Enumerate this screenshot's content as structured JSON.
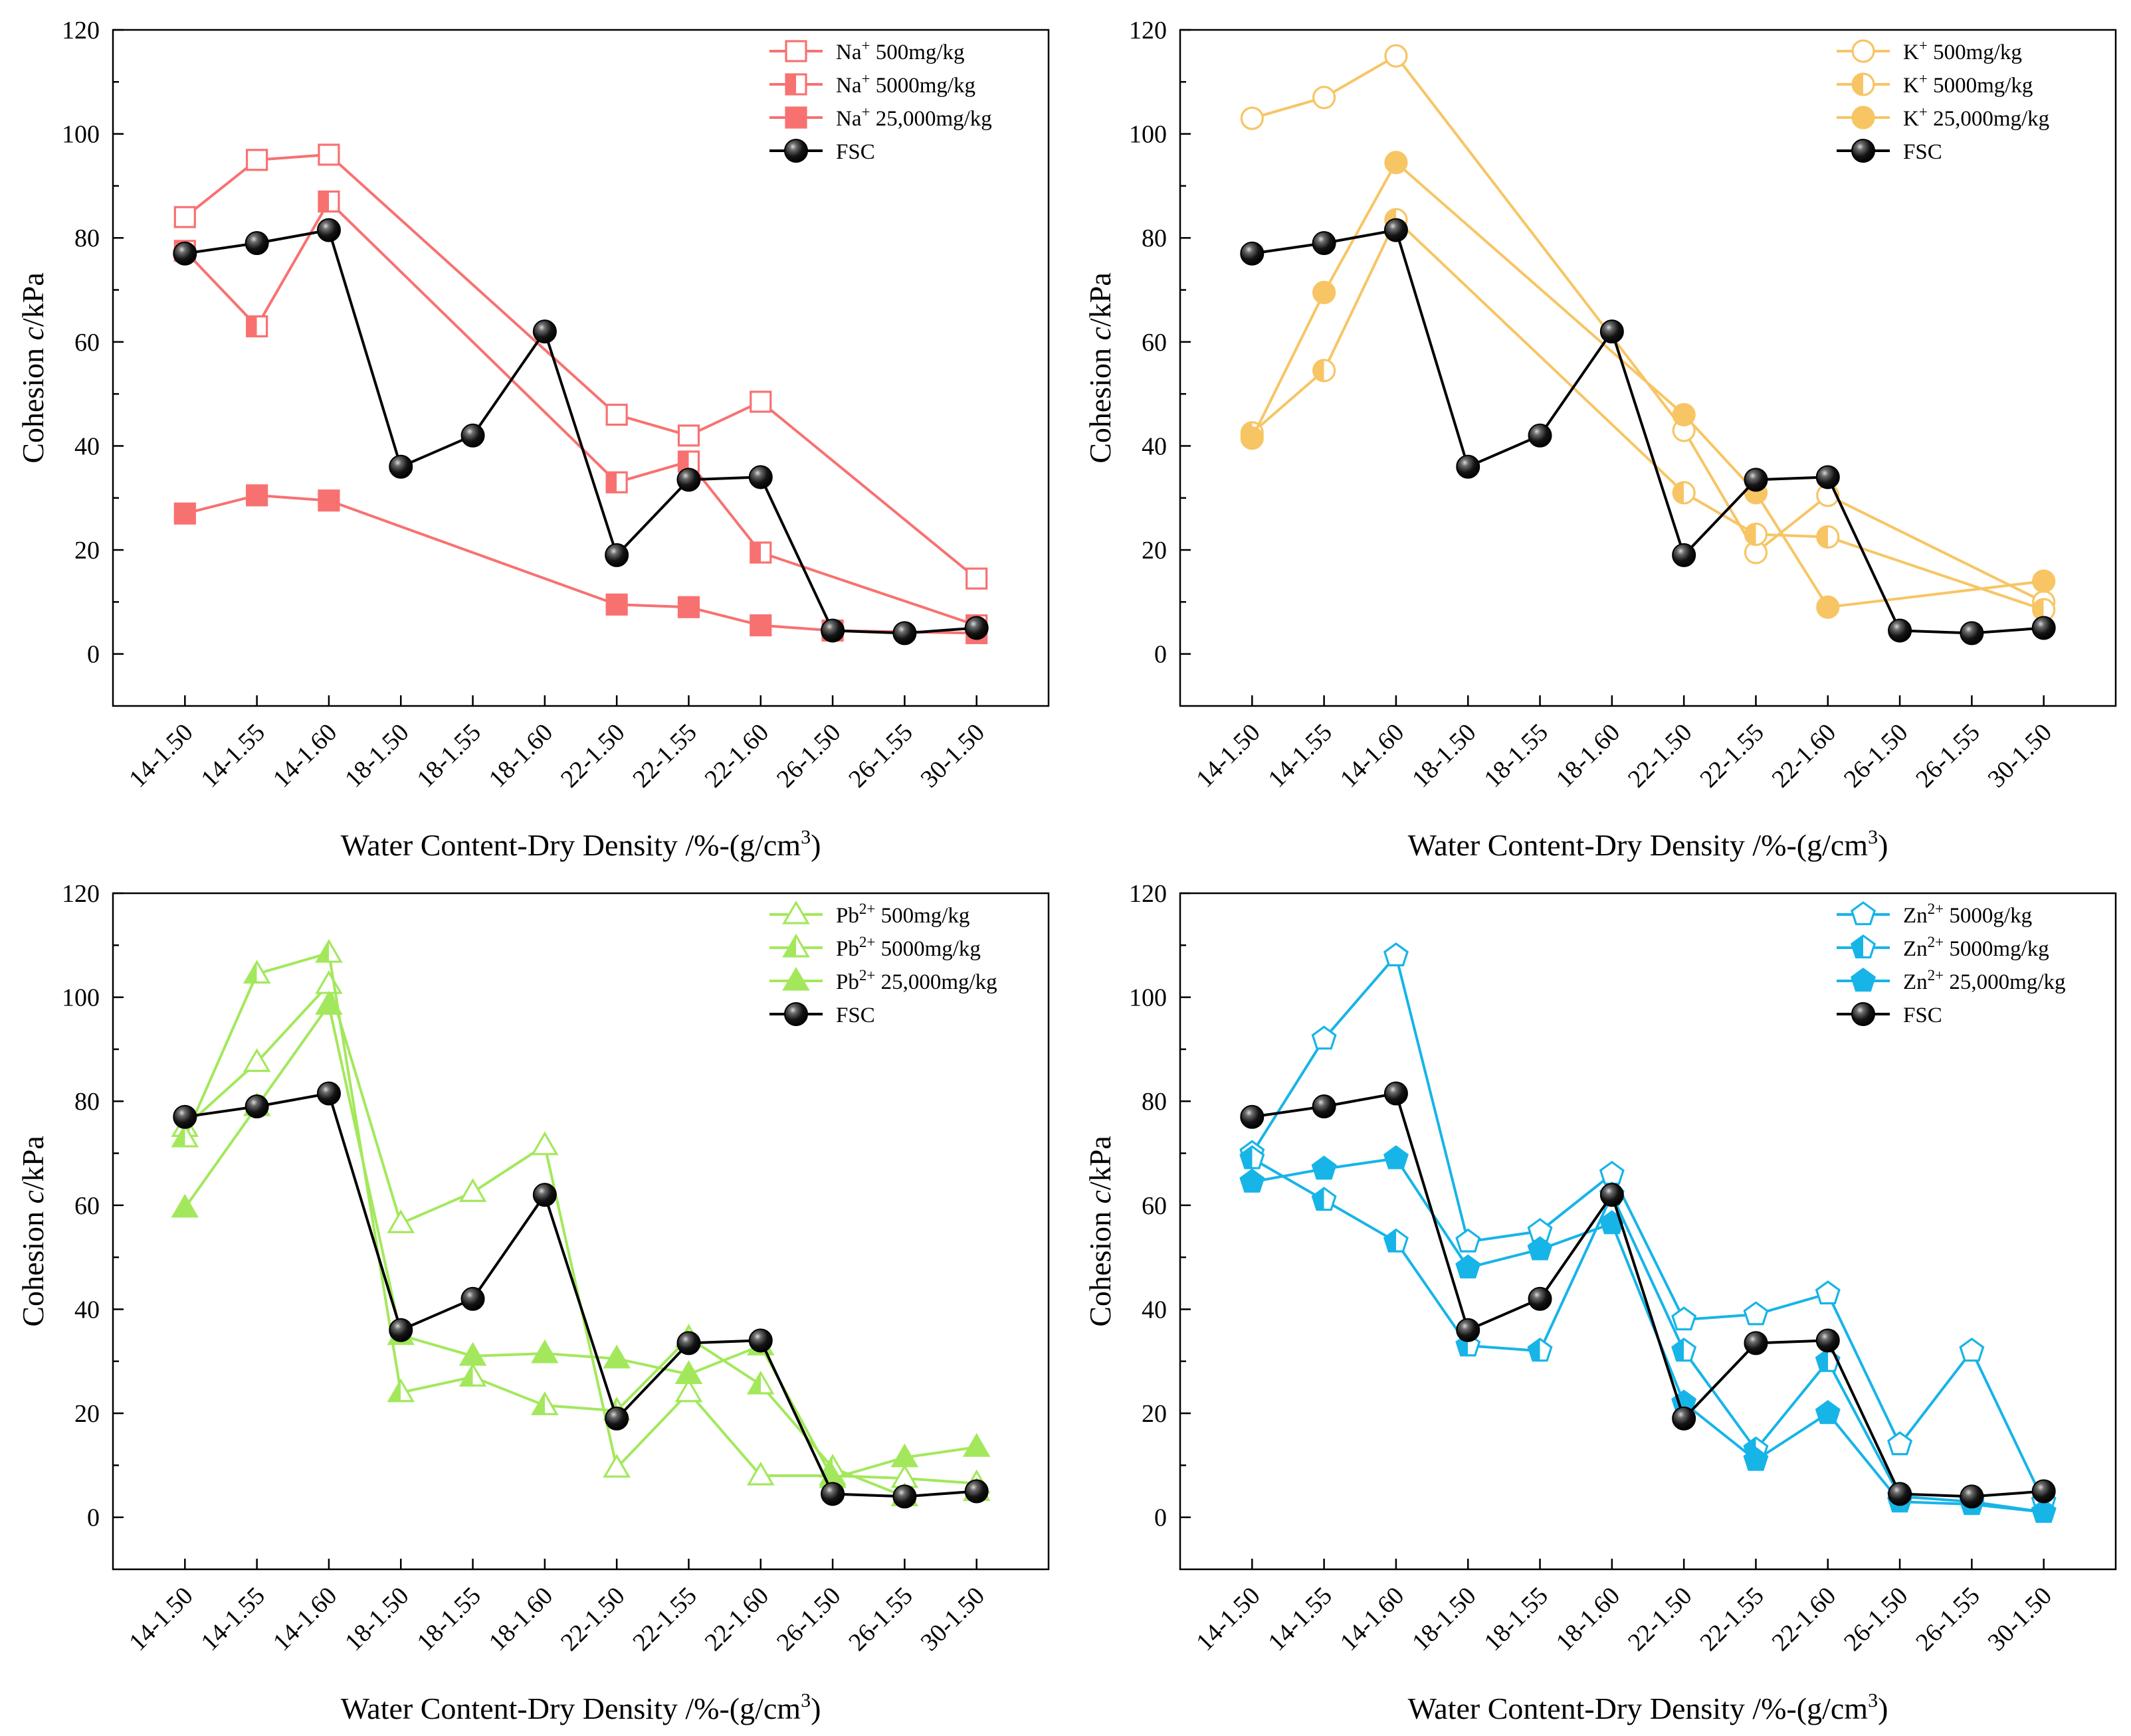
{
  "figure": {
    "xlabel": "Water Content-Dry Density /%-(g/cm",
    "xlabel_sup": "3",
    "xlabel_end": ")",
    "ylabel": "Cohesion ",
    "ylabel_var": "c",
    "ylabel_unit": "/kPa"
  },
  "colors": {
    "Na": "#f87171",
    "K": "#f7c564",
    "Pb": "#a3e85c",
    "Zn": "#17b4e8",
    "FSC": "#000000"
  },
  "chart_data": [
    {
      "type": "line",
      "categories": [
        "14-1.50",
        "14-1.55",
        "14-1.60",
        "18-1.50",
        "18-1.55",
        "18-1.60",
        "22-1.50",
        "22-1.55",
        "22-1.60",
        "26-1.50",
        "26-1.55",
        "30-1.50"
      ],
      "yticks": [
        "0",
        "20",
        "40",
        "60",
        "80",
        "100",
        "120"
      ],
      "ylim": [
        -10,
        120
      ],
      "legend_position": "top-right",
      "series": [
        {
          "ion": "Na",
          "sup": "+",
          "text": " 500mg/kg",
          "marker": "square",
          "fill": "open",
          "values": [
            84,
            95,
            96,
            null,
            null,
            null,
            46,
            42,
            48.5,
            null,
            null,
            14.5
          ]
        },
        {
          "ion": "Na",
          "sup": "+",
          "text": " 5000mg/kg",
          "marker": "square",
          "fill": "half",
          "values": [
            77.5,
            63,
            87,
            null,
            null,
            null,
            33,
            37,
            19.5,
            null,
            null,
            5.5
          ]
        },
        {
          "ion": "Na",
          "sup": "+",
          "text": " 25,000mg/kg",
          "marker": "square",
          "fill": "full",
          "values": [
            27,
            30.5,
            29.5,
            null,
            null,
            null,
            9.5,
            9,
            5.5,
            4.5,
            null,
            4
          ]
        },
        {
          "ion": "",
          "sup": "",
          "text": "FSC",
          "marker": "ball",
          "fill": "full",
          "values": [
            77,
            79,
            81.5,
            36,
            42,
            62,
            19,
            33.5,
            34,
            4.5,
            4,
            5
          ]
        }
      ]
    },
    {
      "type": "line",
      "categories": [
        "14-1.50",
        "14-1.55",
        "14-1.60",
        "18-1.50",
        "18-1.55",
        "18-1.60",
        "22-1.50",
        "22-1.55",
        "22-1.60",
        "26-1.50",
        "26-1.55",
        "30-1.50"
      ],
      "yticks": [
        "0",
        "20",
        "40",
        "60",
        "80",
        "100",
        "120"
      ],
      "ylim": [
        -10,
        120
      ],
      "legend_position": "top-right",
      "series": [
        {
          "ion": "K",
          "sup": "+",
          "text": " 500mg/kg",
          "marker": "circle",
          "fill": "open",
          "values": [
            103,
            107,
            115,
            null,
            null,
            null,
            43,
            19.5,
            30.5,
            null,
            null,
            10
          ]
        },
        {
          "ion": "K",
          "sup": "+",
          "text": " 5000mg/kg",
          "marker": "circle",
          "fill": "half",
          "values": [
            42.5,
            54.5,
            83.5,
            null,
            null,
            null,
            31,
            23,
            22.5,
            null,
            null,
            8.5
          ]
        },
        {
          "ion": "K",
          "sup": "+",
          "text": " 25,000mg/kg",
          "marker": "circle",
          "fill": "full",
          "values": [
            41.5,
            69.5,
            94.5,
            null,
            null,
            null,
            46,
            31,
            9,
            null,
            null,
            14
          ]
        },
        {
          "ion": "",
          "sup": "",
          "text": "FSC",
          "marker": "ball",
          "fill": "full",
          "values": [
            77,
            79,
            81.5,
            36,
            42,
            62,
            19,
            33.5,
            34,
            4.5,
            4,
            5
          ]
        }
      ]
    },
    {
      "type": "line",
      "categories": [
        "14-1.50",
        "14-1.55",
        "14-1.60",
        "18-1.50",
        "18-1.55",
        "18-1.60",
        "22-1.50",
        "22-1.55",
        "22-1.60",
        "26-1.50",
        "26-1.55",
        "30-1.50"
      ],
      "yticks": [
        "0",
        "20",
        "40",
        "60",
        "80",
        "100",
        "120"
      ],
      "ylim": [
        -10,
        120
      ],
      "legend_position": "top-right",
      "series": [
        {
          "ion": "Pb",
          "sup": "2+",
          "text": " 500mg/kg",
          "marker": "triangle",
          "fill": "open",
          "values": [
            75,
            87.5,
            102.5,
            56.5,
            62.5,
            71.5,
            9.5,
            24,
            8,
            8,
            7.5,
            6.5
          ]
        },
        {
          "ion": "Pb",
          "sup": "2+",
          "text": " 5000mg/kg",
          "marker": "triangle",
          "fill": "half",
          "values": [
            73,
            104.5,
            108.5,
            24,
            27,
            21.5,
            20.5,
            34.5,
            25.5,
            9.5,
            4,
            5
          ]
        },
        {
          "ion": "Pb",
          "sup": "2+",
          "text": " 25,000mg/kg",
          "marker": "triangle",
          "fill": "full",
          "values": [
            59.5,
            79,
            98.5,
            35,
            31,
            31.5,
            30.5,
            27.5,
            33,
            7.5,
            11.5,
            13.5
          ]
        },
        {
          "ion": "",
          "sup": "",
          "text": "FSC",
          "marker": "ball",
          "fill": "full",
          "values": [
            77,
            79,
            81.5,
            36,
            42,
            62,
            19,
            33.5,
            34,
            4.5,
            4,
            5
          ]
        }
      ]
    },
    {
      "type": "line",
      "categories": [
        "14-1.50",
        "14-1.55",
        "14-1.60",
        "18-1.50",
        "18-1.55",
        "18-1.60",
        "22-1.50",
        "22-1.55",
        "22-1.60",
        "26-1.50",
        "26-1.55",
        "30-1.50"
      ],
      "yticks": [
        "0",
        "20",
        "40",
        "60",
        "80",
        "100",
        "120"
      ],
      "ylim": [
        -10,
        120
      ],
      "legend_position": "top-right",
      "series": [
        {
          "ion": "Zn",
          "sup": "2+",
          "text": " 5000g/kg",
          "marker": "pentagon",
          "fill": "open",
          "values": [
            70,
            92,
            108,
            53,
            55,
            66,
            38,
            39,
            43,
            14,
            32,
            3
          ]
        },
        {
          "ion": "Zn",
          "sup": "2+",
          "text": " 5000mg/kg",
          "marker": "pentagon",
          "fill": "half",
          "values": [
            69,
            61,
            53,
            33,
            32,
            62,
            32,
            13,
            30,
            4,
            3,
            1
          ]
        },
        {
          "ion": "Zn",
          "sup": "2+",
          "text": " 25,000mg/kg",
          "marker": "pentagon",
          "fill": "full",
          "values": [
            64.5,
            67,
            69,
            48,
            51.5,
            56.5,
            22,
            11,
            20,
            3,
            2.5,
            1
          ]
        },
        {
          "ion": "",
          "sup": "",
          "text": "FSC",
          "marker": "ball",
          "fill": "full",
          "values": [
            77,
            79,
            81.5,
            36,
            42,
            62,
            19,
            33.5,
            34,
            4.5,
            4,
            5
          ]
        }
      ]
    }
  ]
}
